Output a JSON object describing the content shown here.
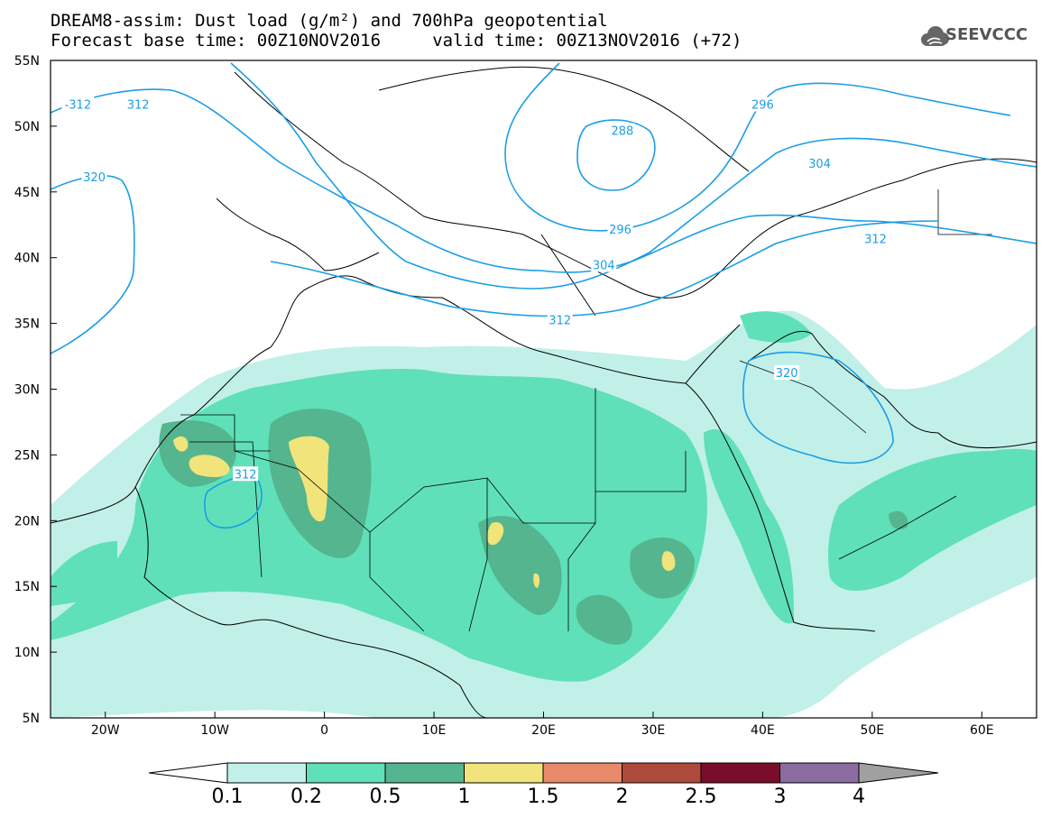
{
  "header": {
    "title_line1": "DREAM8-assim: Dust load (g/m²) and 700hPa geopotential",
    "title_line2": "Forecast base time: 00Z10NOV2016     valid time: 00Z13NOV2016 (+72)",
    "logo_text": "SEEVCCC",
    "logo_icon": "cloud-logo-icon"
  },
  "map": {
    "lon_range": [
      -25,
      65
    ],
    "lat_range": [
      5,
      55
    ],
    "lat_ticks": [
      "55N",
      "50N",
      "45N",
      "40N",
      "35N",
      "30N",
      "25N",
      "20N",
      "15N",
      "10N",
      "5N"
    ],
    "lon_ticks": [
      "20W",
      "10W",
      "0",
      "10E",
      "20E",
      "30E",
      "40E",
      "50E",
      "60E"
    ],
    "contour_color": "#1a9ee6",
    "contour_labels": [
      {
        "text": "-312",
        "lon": -22.5,
        "lat": 51.6
      },
      {
        "text": "312",
        "lon": -17,
        "lat": 51.6
      },
      {
        "text": "320",
        "lon": -21,
        "lat": 46.1
      },
      {
        "text": "296",
        "lon": 40,
        "lat": 51.6
      },
      {
        "text": "288",
        "lon": 27.2,
        "lat": 49.6
      },
      {
        "text": "304",
        "lon": 45.2,
        "lat": 47.1
      },
      {
        "text": "312",
        "lon": 50.3,
        "lat": 41.4
      },
      {
        "text": "296",
        "lon": 27,
        "lat": 42.1
      },
      {
        "text": "304",
        "lon": 25.5,
        "lat": 39.4
      },
      {
        "text": "312",
        "lon": 21.5,
        "lat": 35.2
      },
      {
        "text": "320",
        "lon": 42.2,
        "lat": 31.2
      },
      {
        "text": "312",
        "lon": -7.2,
        "lat": 23.5
      }
    ]
  },
  "colorbar": {
    "labels": [
      "0.1",
      "0.2",
      "0.5",
      "1",
      "1.5",
      "2",
      "2.5",
      "3",
      "4"
    ],
    "colors": [
      "#c1f0e8",
      "#5fe0b8",
      "#54b58f",
      "#f0e47a",
      "#e88a6a",
      "#ad4a3c",
      "#7a0d2a",
      "#8c6ba0",
      "#a0a0a0"
    ]
  }
}
